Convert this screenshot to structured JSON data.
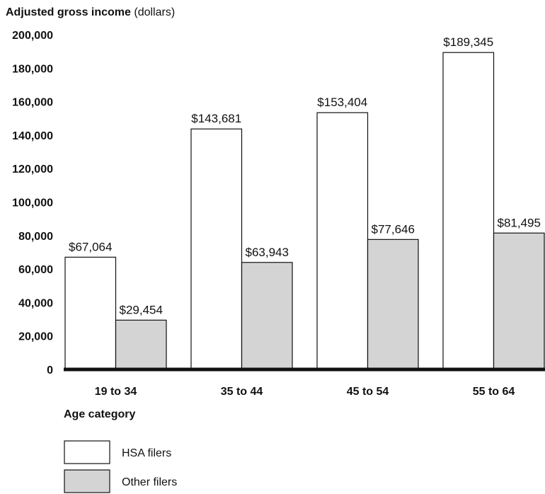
{
  "chart_data": {
    "type": "bar",
    "title_bold": "Adjusted gross income",
    "title_unit": " (dollars)",
    "xlabel": "Age category",
    "categories": [
      "19 to 34",
      "35 to 44",
      "45 to 54",
      "55 to 64"
    ],
    "ylim": [
      0,
      200000
    ],
    "yticks": [
      "0",
      "20,000",
      "40,000",
      "60,000",
      "80,000",
      "100,000",
      "120,000",
      "140,000",
      "160,000",
      "180,000",
      "200,000"
    ],
    "grid": false,
    "legend_position": "bottom-left",
    "series": [
      {
        "name": "HSA filers",
        "color": "#ffffff",
        "values": [
          67064,
          143681,
          153404,
          189345
        ],
        "labels": [
          "$67,064",
          "$143,681",
          "$153,404",
          "$189,345"
        ]
      },
      {
        "name": "Other filers",
        "color": "#d4d4d4",
        "values": [
          29454,
          63943,
          77646,
          81495
        ],
        "labels": [
          "$29,454",
          "$63,943",
          "$77,646",
          "$81,495"
        ]
      }
    ]
  }
}
